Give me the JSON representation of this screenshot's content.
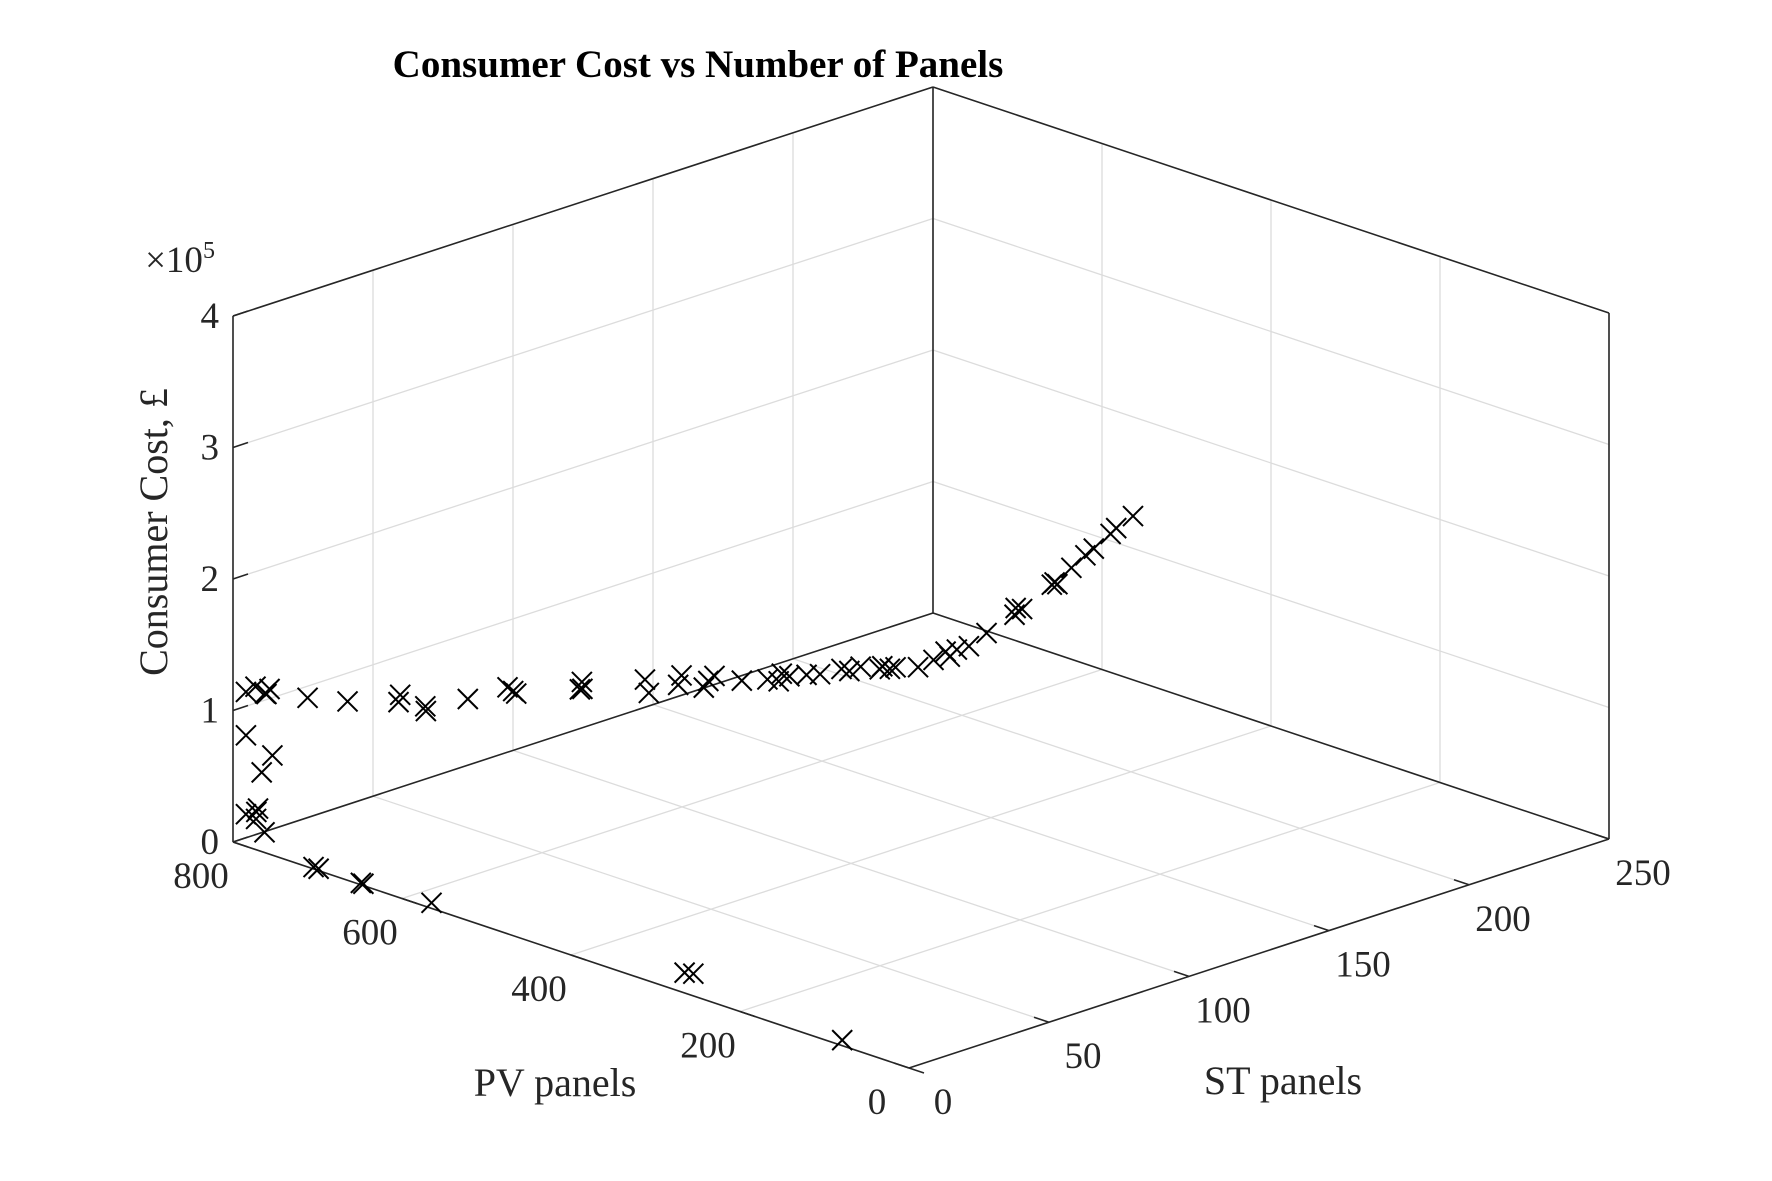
{
  "chart_data": {
    "type": "scatter",
    "title": "Consumer Cost vs Number of Panels",
    "xlabel": "ST panels",
    "ylabel": "PV panels",
    "zlabel": "Consumer Cost, £",
    "z_exponent_label": "×10",
    "z_exponent_power": "5",
    "xlim": [
      0,
      250
    ],
    "ylim": [
      0,
      800
    ],
    "zlim": [
      0,
      400000
    ],
    "x_ticks": [
      0,
      50,
      100,
      150,
      200,
      250
    ],
    "y_ticks": [
      0,
      200,
      400,
      600,
      800
    ],
    "z_ticks": [
      0,
      100000,
      200000,
      300000,
      400000
    ],
    "z_tick_labels": [
      "0",
      "1",
      "2",
      "3",
      "4"
    ],
    "grid": true,
    "marker": "x",
    "marker_color": "#000000",
    "series": [
      {
        "points": [
          [
            3,
            89,
            0
          ],
          [
            12,
            295,
            0
          ],
          [
            11,
            302,
            0
          ],
          [
            3,
            575,
            0
          ],
          [
            1,
            649,
            0
          ],
          [
            1,
            652,
            0
          ],
          [
            1,
            708,
            0
          ],
          [
            1,
            702,
            0
          ],
          [
            1,
            766,
            14000
          ],
          [
            1,
            776,
            22000
          ],
          [
            2,
            777,
            29000
          ],
          [
            2,
            779,
            26000
          ],
          [
            1,
            788,
            23000
          ],
          [
            3,
            776,
            56000
          ],
          [
            1,
            788,
            83000
          ],
          [
            2,
            760,
            73000
          ],
          [
            1,
            788,
            116000
          ],
          [
            3,
            772,
            117000
          ],
          [
            2,
            780,
            121000
          ],
          [
            5,
            777,
            114000
          ],
          [
            4,
            770,
            120000
          ],
          [
            4,
            725,
            123000
          ],
          [
            5,
            681,
            129000
          ],
          [
            6,
            622,
            146000
          ],
          [
            6,
            624,
            140000
          ],
          [
            4,
            585,
            143000
          ],
          [
            5,
            589,
            145000
          ],
          [
            6,
            542,
            160000
          ],
          [
            6,
            495,
            179000
          ],
          [
            7,
            488,
            175000
          ],
          [
            5,
            485,
            179000
          ],
          [
            8,
            416,
            193000
          ],
          [
            8,
            413,
            194000
          ],
          [
            6,
            407,
            202000
          ],
          [
            8,
            339,
            217000
          ],
          [
            10,
            341,
            205000
          ],
          [
            9,
            303,
            220000
          ],
          [
            9,
            299,
            228000
          ],
          [
            10,
            276,
            223000
          ],
          [
            8,
            264,
            232000
          ],
          [
            9,
            260,
            236000
          ],
          [
            10,
            231,
            238000
          ],
          [
            11,
            204,
            244000
          ],
          [
            12,
            194,
            244000
          ],
          [
            11,
            187,
            252000
          ],
          [
            11,
            178,
            252000
          ],
          [
            12,
            161,
            256000
          ],
          [
            12,
            145,
            260000
          ],
          [
            13,
            123,
            268000
          ],
          [
            14,
            117,
            267000
          ],
          [
            12,
            97,
            276000
          ],
          [
            14,
            81,
            276000
          ],
          [
            14,
            78,
            279000
          ],
          [
            14,
            69,
            279000
          ],
          [
            13,
            59,
            283000
          ],
          [
            15,
            39,
            286000
          ],
          [
            16,
            24,
            294000
          ],
          [
            20,
            18,
            295000
          ],
          [
            17,
            13,
            302000
          ],
          [
            18,
            3,
            305000
          ],
          [
            22,
            2,
            305000
          ],
          [
            28,
            1,
            311000
          ],
          [
            38,
            1,
            318000
          ],
          [
            39,
            3,
            322000
          ],
          [
            41,
            2,
            320000
          ],
          [
            51,
            0,
            332000
          ],
          [
            52,
            0,
            333000
          ],
          [
            53,
            0,
            331000
          ],
          [
            58,
            0,
            340000
          ],
          [
            63,
            0,
            346000
          ],
          [
            66,
            0,
            349000
          ],
          [
            72,
            0,
            356000
          ],
          [
            74,
            0,
            359000
          ],
          [
            80,
            0,
            364000
          ]
        ]
      }
    ]
  }
}
